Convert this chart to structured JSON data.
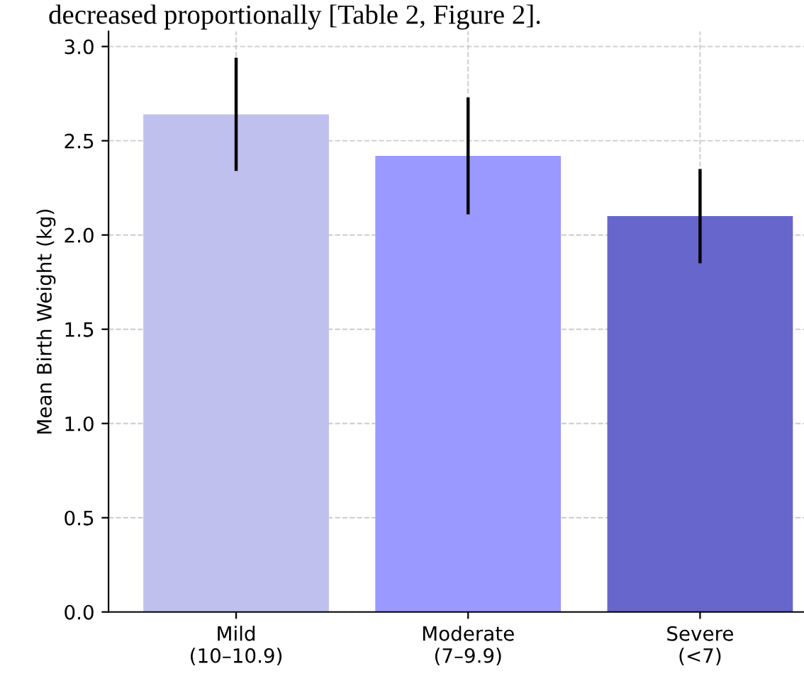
{
  "chart_data": {
    "type": "bar",
    "categories": [
      "Mild\n(10–10.9)",
      "Moderate\n(7–9.9)",
      "Severe\n(<7)"
    ],
    "values": [
      2.64,
      2.42,
      2.1
    ],
    "errors": [
      0.3,
      0.31,
      0.25
    ],
    "colors": [
      "#c0c0ef",
      "#9999ff",
      "#6666cc"
    ],
    "ylabel": "Mean Birth Weight (kg)",
    "ylim": [
      0,
      3.08
    ],
    "yticks": [
      {
        "value": 0,
        "label": "0.0"
      },
      0.5,
      {
        "value": 1,
        "label": "1.0"
      },
      1.5,
      {
        "value": 2,
        "label": "2.0"
      },
      2.5,
      {
        "value": 3,
        "label": "3.0"
      }
    ],
    "grid": true,
    "annotations": [
      "decreased proportionally [Table 2, Figure 2]."
    ]
  }
}
